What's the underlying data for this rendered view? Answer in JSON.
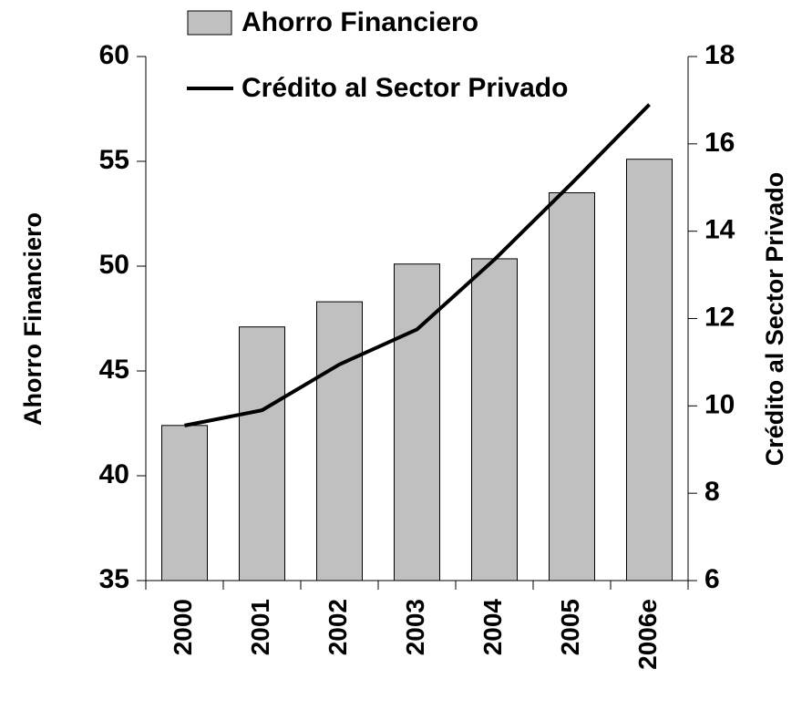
{
  "chart_data": {
    "type": "bar",
    "categories": [
      "2000",
      "2001",
      "2002",
      "2003",
      "2004",
      "2005",
      "2006e"
    ],
    "series": [
      {
        "name": "Ahorro Financiero",
        "type": "bar",
        "color": "#c0c0c0",
        "values": [
          42.4,
          47.1,
          48.3,
          50.1,
          50.35,
          53.5,
          55.1
        ]
      },
      {
        "name": "Crédito al Sector Privado",
        "type": "line",
        "axis": "y2",
        "color": "#000000",
        "values": [
          9.55,
          9.9,
          10.95,
          11.75,
          13.35,
          15.1,
          16.9
        ]
      }
    ],
    "ylabel": "Ahorro Financiero",
    "y2label": "Crédito al Sector Privado",
    "ylim": [
      35,
      60
    ],
    "yticks": [
      35,
      40,
      45,
      50,
      55,
      60
    ],
    "y2lim": [
      6,
      18
    ],
    "y2ticks": [
      6,
      8,
      10,
      12,
      14,
      16,
      18
    ],
    "grid": false,
    "legend": "top"
  }
}
